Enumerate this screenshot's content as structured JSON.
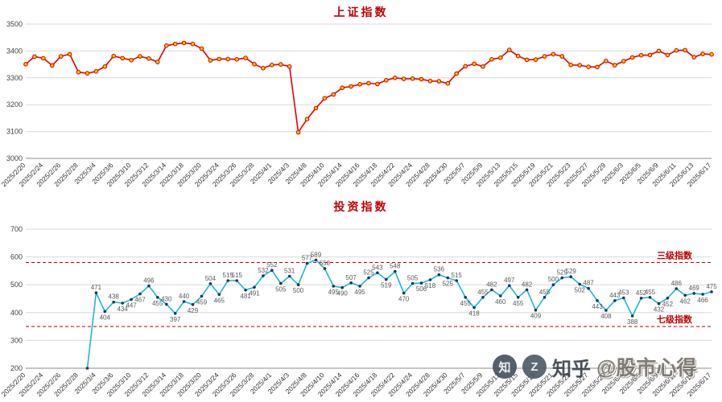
{
  "watermark": {
    "logo_glyph_1": "知",
    "logo_glyph_2": "Z",
    "brand": "知乎",
    "handle": "@股市心得"
  },
  "colors": {
    "title_red": "#c00000",
    "shanghai_line": "#e60000",
    "shanghai_marker_fill": "#ffc000",
    "shanghai_marker_stroke": "#cc0000",
    "invest_line": "#1fb5d8",
    "invest_marker_fill": "#17375e",
    "reference_red": "#c00000",
    "grid": "#d9d9d9"
  },
  "chart_data": [
    {
      "type": "line",
      "title": "上证指数",
      "xlabel": "",
      "ylabel": "",
      "ylim": [
        3000,
        3500
      ],
      "y_ticks": [
        3000,
        3100,
        3200,
        3300,
        3400,
        3500
      ],
      "grid": true,
      "legend_position": "none",
      "label_every": 2,
      "line_color": "#e60000",
      "marker_fill": "#ffc000",
      "marker_stroke": "#cc0000",
      "marker_r": 2.3,
      "show_point_labels": false,
      "x": [
        "2025/2/20",
        "2025/2/21",
        "2025/2/24",
        "2025/2/25",
        "2025/2/26",
        "2025/2/27",
        "2025/2/28",
        "2025/3/3",
        "2025/3/4",
        "2025/3/5",
        "2025/3/6",
        "2025/3/7",
        "2025/3/10",
        "2025/3/11",
        "2025/3/12",
        "2025/3/13",
        "2025/3/14",
        "2025/3/17",
        "2025/3/18",
        "2025/3/19",
        "2025/3/20",
        "2025/3/21",
        "2025/3/24",
        "2025/3/25",
        "2025/3/26",
        "2025/3/27",
        "2025/3/28",
        "2025/3/31",
        "2025/4/1",
        "2025/4/2",
        "2025/4/3",
        "2025/4/7",
        "2025/4/8",
        "2025/4/9",
        "2025/4/10",
        "2025/4/11",
        "2025/4/14",
        "2025/4/15",
        "2025/4/16",
        "2025/4/17",
        "2025/4/18",
        "2025/4/21",
        "2025/4/22",
        "2025/4/23",
        "2025/4/24",
        "2025/4/25",
        "2025/4/28",
        "2025/4/29",
        "2025/4/30",
        "2025/5/6",
        "2025/5/7",
        "2025/5/8",
        "2025/5/9",
        "2025/5/12",
        "2025/5/13",
        "2025/5/14",
        "2025/5/15",
        "2025/5/16",
        "2025/5/19",
        "2025/5/20",
        "2025/5/21",
        "2025/5/22",
        "2025/5/23",
        "2025/5/26",
        "2025/5/27",
        "2025/5/28",
        "2025/5/29",
        "2025/5/30",
        "2025/6/3",
        "2025/6/4",
        "2025/6/5",
        "2025/6/6",
        "2025/6/9",
        "2025/6/10",
        "2025/6/11",
        "2025/6/12",
        "2025/6/13",
        "2025/6/16",
        "2025/6/17"
      ],
      "values": [
        3351,
        3379,
        3373,
        3346,
        3380,
        3388,
        3321,
        3317,
        3324,
        3342,
        3381,
        3373,
        3366,
        3380,
        3372,
        3359,
        3420,
        3426,
        3430,
        3426,
        3409,
        3365,
        3370,
        3370,
        3369,
        3374,
        3351,
        3336,
        3348,
        3350,
        3342,
        3097,
        3146,
        3187,
        3224,
        3238,
        3263,
        3268,
        3276,
        3280,
        3277,
        3291,
        3300,
        3296,
        3297,
        3295,
        3288,
        3287,
        3279,
        3316,
        3343,
        3352,
        3342,
        3369,
        3375,
        3404,
        3381,
        3367,
        3368,
        3380,
        3388,
        3380,
        3348,
        3347,
        3341,
        3340,
        3363,
        3347,
        3362,
        3376,
        3384,
        3385,
        3400,
        3385,
        3402,
        3403,
        3377,
        3389,
        3387
      ]
    },
    {
      "type": "line",
      "title": "投资指数",
      "xlabel": "",
      "ylabel": "",
      "ylim": [
        200,
        700
      ],
      "y_ticks": [
        200,
        300,
        400,
        500,
        600,
        700
      ],
      "grid": true,
      "legend_position": "none",
      "label_every": 2,
      "line_color": "#1fb5d8",
      "marker_fill": "#17375e",
      "marker_stroke": "",
      "marker_r": 1.8,
      "show_point_labels": true,
      "ref_lines": [
        {
          "value": 580,
          "label": "三级指数"
        },
        {
          "value": 350,
          "label": "七级指数"
        }
      ],
      "x": [
        "2025/2/20",
        "2025/2/21",
        "2025/2/24",
        "2025/2/25",
        "2025/2/26",
        "2025/2/27",
        "2025/2/28",
        "2025/3/3",
        "2025/3/4",
        "2025/3/5",
        "2025/3/6",
        "2025/3/7",
        "2025/3/10",
        "2025/3/11",
        "2025/3/12",
        "2025/3/13",
        "2025/3/14",
        "2025/3/17",
        "2025/3/18",
        "2025/3/19",
        "2025/3/20",
        "2025/3/21",
        "2025/3/24",
        "2025/3/25",
        "2025/3/26",
        "2025/3/27",
        "2025/3/28",
        "2025/3/31",
        "2025/4/1",
        "2025/4/2",
        "2025/4/3",
        "2025/4/7",
        "2025/4/8",
        "2025/4/9",
        "2025/4/10",
        "2025/4/11",
        "2025/4/14",
        "2025/4/15",
        "2025/4/16",
        "2025/4/17",
        "2025/4/18",
        "2025/4/21",
        "2025/4/22",
        "2025/4/23",
        "2025/4/24",
        "2025/4/25",
        "2025/4/28",
        "2025/4/29",
        "2025/4/30",
        "2025/5/6",
        "2025/5/7",
        "2025/5/8",
        "2025/5/9",
        "2025/5/12",
        "2025/5/13",
        "2025/5/14",
        "2025/5/15",
        "2025/5/16",
        "2025/5/19",
        "2025/5/20",
        "2025/5/21",
        "2025/5/22",
        "2025/5/23",
        "2025/5/26",
        "2025/5/27",
        "2025/5/28",
        "2025/5/29",
        "2025/5/30",
        "2025/6/3",
        "2025/6/4",
        "2025/6/5",
        "2025/6/6",
        "2025/6/9",
        "2025/6/10",
        "2025/6/11",
        "2025/6/12",
        "2025/6/13",
        "2025/6/16",
        "2025/6/17"
      ],
      "values": [
        null,
        null,
        null,
        null,
        null,
        null,
        null,
        200,
        471,
        404,
        438,
        434,
        447,
        467,
        496,
        455,
        430,
        397,
        440,
        429,
        459,
        504,
        465,
        515,
        515,
        481,
        491,
        532,
        552,
        505,
        531,
        500,
        577,
        589,
        558,
        495,
        490,
        507,
        495,
        525,
        543,
        519,
        548,
        470,
        505,
        506,
        518,
        536,
        525,
        515,
        455,
        418,
        455,
        482,
        460,
        497,
        455,
        482,
        409,
        455,
        500,
        525,
        529,
        502,
        487,
        443,
        408,
        443,
        453,
        388,
        452,
        455,
        432,
        452,
        486,
        462,
        469,
        466,
        475
      ]
    }
  ]
}
